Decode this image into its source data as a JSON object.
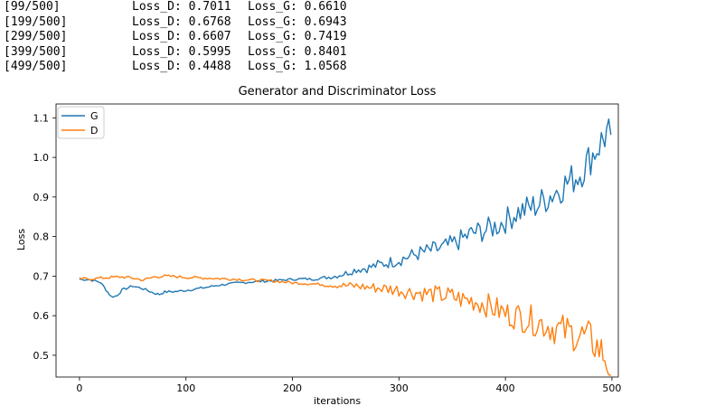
{
  "training_log": [
    {
      "iter": "[99/500]",
      "loss_d": "Loss_D: 0.7011",
      "loss_g": "Loss_G: 0.6610"
    },
    {
      "iter": "[199/500]",
      "loss_d": "Loss_D: 0.6768",
      "loss_g": "Loss_G: 0.6943"
    },
    {
      "iter": "[299/500]",
      "loss_d": "Loss_D: 0.6607",
      "loss_g": "Loss_G: 0.7419"
    },
    {
      "iter": "[399/500]",
      "loss_d": "Loss_D: 0.5995",
      "loss_g": "Loss_G: 0.8401"
    },
    {
      "iter": "[499/500]",
      "loss_d": "Loss_D: 0.4488",
      "loss_g": "Loss_G: 1.0568"
    }
  ],
  "chart_data": {
    "type": "line",
    "title": "Generator and Discriminator Loss",
    "xlabel": "iterations",
    "ylabel": "Loss",
    "xlim": [
      -22,
      506
    ],
    "ylim": [
      0.445,
      1.135
    ],
    "xticks": [
      0,
      100,
      200,
      300,
      400,
      500
    ],
    "yticks": [
      0.5,
      0.6,
      0.7,
      0.8,
      0.9,
      1.0,
      1.1
    ],
    "ytick_labels": [
      "0.5",
      "0.6",
      "0.7",
      "0.8",
      "0.9",
      "1.0",
      "1.1"
    ],
    "grid": false,
    "legend_position": "top-left",
    "series": [
      {
        "name": "G",
        "color": "#1f77b4",
        "points": [
          [
            0,
            0.692
          ],
          [
            10,
            0.691
          ],
          [
            20,
            0.684
          ],
          [
            25,
            0.665
          ],
          [
            30,
            0.648
          ],
          [
            35,
            0.65
          ],
          [
            40,
            0.665
          ],
          [
            50,
            0.675
          ],
          [
            60,
            0.668
          ],
          [
            70,
            0.657
          ],
          [
            75,
            0.654
          ],
          [
            80,
            0.66
          ],
          [
            90,
            0.661
          ],
          [
            100,
            0.664
          ],
          [
            110,
            0.668
          ],
          [
            120,
            0.672
          ],
          [
            130,
            0.677
          ],
          [
            140,
            0.68
          ],
          [
            150,
            0.683
          ],
          [
            160,
            0.685
          ],
          [
            170,
            0.687
          ],
          [
            180,
            0.688
          ],
          [
            190,
            0.69
          ],
          [
            200,
            0.692
          ],
          [
            210,
            0.693
          ],
          [
            220,
            0.692
          ],
          [
            230,
            0.696
          ],
          [
            240,
            0.7
          ],
          [
            250,
            0.707
          ],
          [
            260,
            0.717
          ],
          [
            270,
            0.72
          ],
          [
            280,
            0.728
          ],
          [
            290,
            0.734
          ],
          [
            300,
            0.741
          ],
          [
            310,
            0.75
          ],
          [
            320,
            0.758
          ],
          [
            330,
            0.765
          ],
          [
            340,
            0.77
          ],
          [
            350,
            0.78
          ],
          [
            360,
            0.795
          ],
          [
            370,
            0.81
          ],
          [
            380,
            0.815
          ],
          [
            390,
            0.825
          ],
          [
            400,
            0.84
          ],
          [
            410,
            0.86
          ],
          [
            420,
            0.87
          ],
          [
            430,
            0.88
          ],
          [
            440,
            0.9
          ],
          [
            450,
            0.92
          ],
          [
            460,
            0.94
          ],
          [
            470,
            0.96
          ],
          [
            480,
            1.0
          ],
          [
            490,
            1.04
          ],
          [
            495,
            1.06
          ],
          [
            499,
            1.057
          ]
        ]
      },
      {
        "name": "D",
        "color": "#ff7f0e",
        "points": [
          [
            0,
            0.693
          ],
          [
            10,
            0.693
          ],
          [
            20,
            0.695
          ],
          [
            30,
            0.697
          ],
          [
            40,
            0.698
          ],
          [
            50,
            0.695
          ],
          [
            60,
            0.69
          ],
          [
            70,
            0.698
          ],
          [
            80,
            0.7
          ],
          [
            90,
            0.699
          ],
          [
            100,
            0.697
          ],
          [
            110,
            0.696
          ],
          [
            120,
            0.695
          ],
          [
            130,
            0.694
          ],
          [
            140,
            0.693
          ],
          [
            150,
            0.692
          ],
          [
            160,
            0.69
          ],
          [
            170,
            0.689
          ],
          [
            180,
            0.688
          ],
          [
            190,
            0.686
          ],
          [
            200,
            0.683
          ],
          [
            210,
            0.682
          ],
          [
            220,
            0.68
          ],
          [
            230,
            0.679
          ],
          [
            240,
            0.677
          ],
          [
            250,
            0.676
          ],
          [
            260,
            0.675
          ],
          [
            270,
            0.672
          ],
          [
            280,
            0.67
          ],
          [
            290,
            0.668
          ],
          [
            300,
            0.665
          ],
          [
            310,
            0.66
          ],
          [
            320,
            0.658
          ],
          [
            330,
            0.655
          ],
          [
            340,
            0.652
          ],
          [
            350,
            0.648
          ],
          [
            360,
            0.64
          ],
          [
            370,
            0.638
          ],
          [
            380,
            0.63
          ],
          [
            390,
            0.618
          ],
          [
            400,
            0.605
          ],
          [
            410,
            0.6
          ],
          [
            420,
            0.592
          ],
          [
            430,
            0.585
          ],
          [
            440,
            0.575
          ],
          [
            450,
            0.565
          ],
          [
            460,
            0.558
          ],
          [
            470,
            0.55
          ],
          [
            480,
            0.54
          ],
          [
            490,
            0.51
          ],
          [
            495,
            0.49
          ],
          [
            499,
            0.449
          ]
        ]
      }
    ]
  }
}
